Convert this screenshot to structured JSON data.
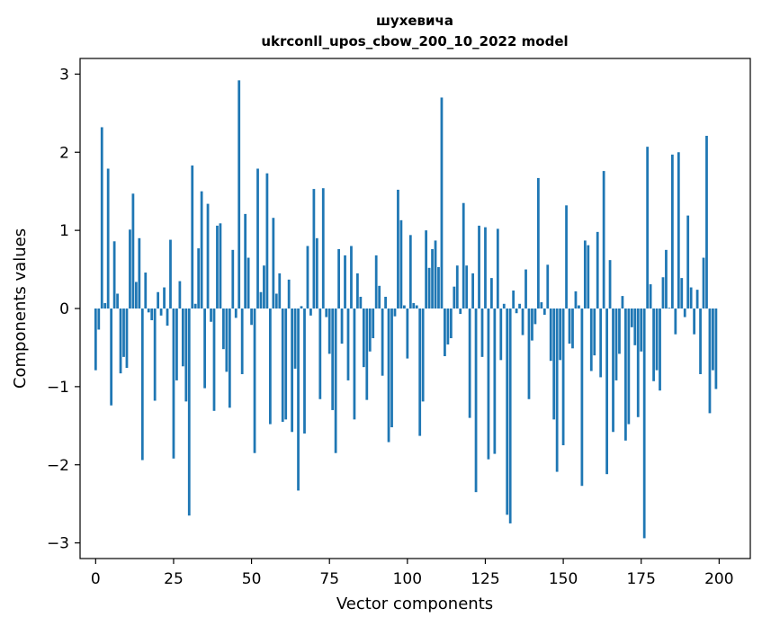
{
  "chart_data": {
    "type": "bar",
    "title_line1": "шухевича",
    "title_line2": "ukrconll_upos_cbow_200_10_2022 model",
    "xlabel": "Vector components",
    "ylabel": "Components values",
    "xlim": [
      -5,
      210
    ],
    "ylim": [
      -3.2,
      3.2
    ],
    "x_ticks": [
      0,
      25,
      50,
      75,
      100,
      125,
      150,
      175,
      200
    ],
    "x_tick_labels": [
      "0",
      "25",
      "50",
      "75",
      "100",
      "125",
      "150",
      "175",
      "200"
    ],
    "y_ticks": [
      3,
      2,
      1,
      0,
      -1,
      -2,
      -3
    ],
    "y_tick_labels": [
      "3",
      "2",
      "1",
      "0",
      "−1",
      "−2",
      "−3"
    ],
    "bar_color": "#1f77b4",
    "values": [
      -0.79,
      -0.27,
      2.32,
      0.07,
      1.79,
      -1.24,
      0.86,
      0.19,
      -0.83,
      -0.62,
      -0.76,
      1.01,
      1.47,
      0.34,
      0.9,
      -1.94,
      0.46,
      -0.05,
      -0.15,
      -1.18,
      0.21,
      -0.09,
      0.27,
      -0.22,
      0.88,
      -1.92,
      -0.92,
      0.35,
      -0.74,
      -1.19,
      -2.65,
      1.83,
      0.06,
      0.77,
      1.5,
      -1.02,
      1.34,
      -0.17,
      -1.31,
      1.06,
      1.09,
      -0.52,
      -0.81,
      -1.27,
      0.75,
      -0.12,
      2.92,
      -0.84,
      1.21,
      0.65,
      -0.21,
      -1.85,
      1.79,
      0.21,
      0.55,
      1.73,
      -1.48,
      1.16,
      0.19,
      0.45,
      -1.45,
      -1.42,
      0.37,
      -1.58,
      -0.77,
      -2.33,
      0.03,
      -1.6,
      0.8,
      -0.09,
      1.53,
      0.9,
      -1.16,
      1.54,
      -0.11,
      -0.58,
      -1.3,
      -1.85,
      0.76,
      -0.45,
      0.68,
      -0.92,
      0.8,
      -1.42,
      0.45,
      0.15,
      -0.75,
      -1.17,
      -0.55,
      -0.38,
      0.68,
      0.29,
      -0.86,
      0.15,
      -1.71,
      -1.52,
      -0.1,
      1.52,
      1.13,
      0.04,
      -0.64,
      0.94,
      0.07,
      0.04,
      -1.63,
      -1.19,
      1.0,
      0.52,
      0.76,
      0.87,
      0.53,
      2.7,
      -0.61,
      -0.46,
      -0.38,
      0.28,
      0.55,
      -0.07,
      1.35,
      0.55,
      -1.4,
      0.45,
      -2.35,
      1.06,
      -0.62,
      1.04,
      -1.93,
      0.39,
      -1.86,
      1.02,
      -0.66,
      0.06,
      -2.64,
      -2.75,
      0.23,
      -0.06,
      0.06,
      -0.34,
      0.5,
      -1.16,
      -0.41,
      -0.2,
      1.67,
      0.08,
      -0.08,
      0.56,
      -0.67,
      -1.42,
      -2.09,
      -0.66,
      -1.75,
      1.32,
      -0.45,
      -0.51,
      0.22,
      0.04,
      -2.27,
      0.87,
      0.81,
      -0.8,
      -0.6,
      0.98,
      -0.88,
      1.76,
      -2.12,
      0.62,
      -1.58,
      -0.92,
      -0.58,
      0.16,
      -1.69,
      -1.48,
      -0.24,
      -0.47,
      -1.39,
      -0.55,
      -2.94,
      2.07,
      0.31,
      -0.93,
      -0.79,
      -1.05,
      0.4,
      0.75,
      0.01,
      1.97,
      -0.33,
      2.0,
      0.39,
      -0.11,
      1.19,
      0.27,
      -0.33,
      0.24,
      -0.84,
      0.65,
      2.21,
      -1.34,
      -0.79,
      -1.03
    ]
  }
}
